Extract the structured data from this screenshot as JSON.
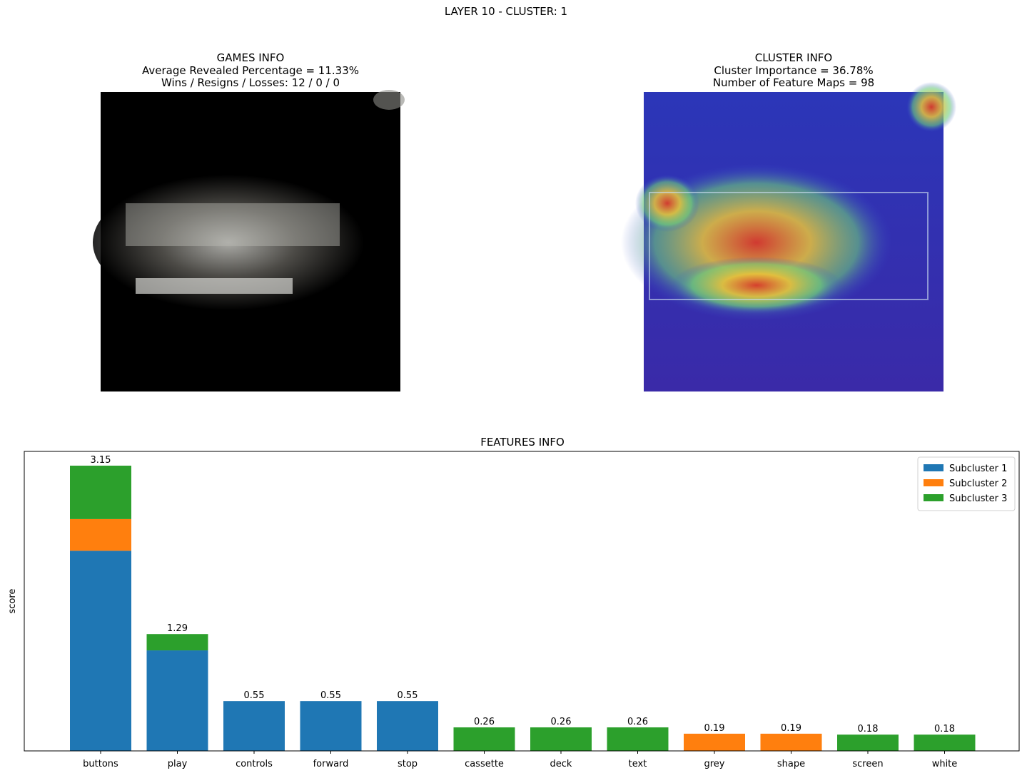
{
  "title": "LAYER 10 - CLUSTER: 1",
  "games_info": {
    "title": "GAMES INFO",
    "lines": [
      "Average Revealed Percentage = 11.33%",
      "Wins / Resigns / Losses: 12 / 0 / 0"
    ]
  },
  "cluster_info": {
    "title": "CLUSTER INFO",
    "lines": [
      "Cluster Importance = 36.78%",
      "Number of Feature Maps = 98"
    ]
  },
  "chart_data": {
    "type": "bar",
    "stacked": true,
    "title": "FEATURES INFO",
    "y_label": "score",
    "categories": [
      "buttons",
      "play",
      "controls",
      "forward",
      "stop",
      "cassette",
      "deck",
      "text",
      "grey",
      "shape",
      "screen",
      "white"
    ],
    "series": [
      {
        "name": "Subcluster 1",
        "color": "#1f77b4",
        "values": [
          2.21,
          1.11,
          0.55,
          0.55,
          0.55,
          null,
          null,
          null,
          null,
          null,
          null,
          null
        ]
      },
      {
        "name": "Subcluster 2",
        "color": "#ff7f0e",
        "values": [
          0.35,
          null,
          null,
          null,
          null,
          null,
          null,
          null,
          0.19,
          0.19,
          null,
          null
        ]
      },
      {
        "name": "Subcluster 3",
        "color": "#2ca02c",
        "values": [
          0.59,
          0.18,
          null,
          null,
          null,
          0.26,
          0.26,
          0.26,
          null,
          null,
          0.18,
          0.18
        ]
      }
    ],
    "totals": [
      3.15,
      1.29,
      0.55,
      0.55,
      0.55,
      0.26,
      0.26,
      0.26,
      0.19,
      0.19,
      0.18,
      0.18
    ],
    "ylim": [
      0,
      3.3075
    ],
    "legend": "upper right"
  }
}
